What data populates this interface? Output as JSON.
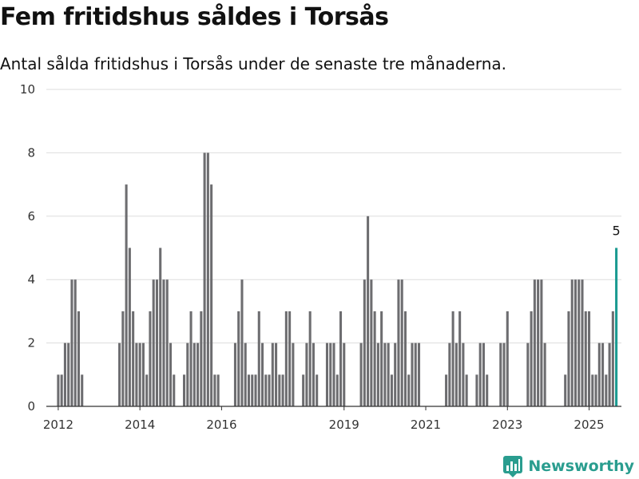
{
  "header": {
    "title": "Fem fritidshus såldes i Torsås",
    "subtitle": "Antal sålda fritidshus i Torsås under de senaste tre månaderna."
  },
  "brand": {
    "name": "Newsworthy",
    "icon": "newsworthy-logo-icon",
    "color": "#2a9d8f"
  },
  "colors": {
    "bar": "#6d6d70",
    "highlight": "#1a9a91",
    "grid": "#dddddd",
    "axis": "#333333"
  },
  "chart_data": {
    "type": "bar",
    "title": "Fem fritidshus såldes i Torsås",
    "subtitle": "Antal sålda fritidshus i Torsås under de senaste tre månaderna.",
    "xlabel": "",
    "ylabel": "",
    "ylim": [
      0,
      10
    ],
    "yticks": [
      "0",
      "2",
      "4",
      "6",
      "8",
      "10"
    ],
    "xlim": [
      "2011-10",
      "2025-11"
    ],
    "xticks": [
      {
        "label": "2012",
        "date": "2012-01"
      },
      {
        "label": "2014",
        "date": "2014-01"
      },
      {
        "label": "2016",
        "date": "2016-01"
      },
      {
        "label": "2019",
        "date": "2019-01"
      },
      {
        "label": "2021",
        "date": "2021-01"
      },
      {
        "label": "2023",
        "date": "2023-01"
      },
      {
        "label": "2025",
        "date": "2025-01"
      }
    ],
    "grid": true,
    "highlight": {
      "date": "2025-09",
      "value": 5,
      "label": "5"
    },
    "series": [
      {
        "values": [
          [
            "2012-01",
            1
          ],
          [
            "2012-02",
            1
          ],
          [
            "2012-03",
            2
          ],
          [
            "2012-04",
            2
          ],
          [
            "2012-05",
            4
          ],
          [
            "2012-06",
            4
          ],
          [
            "2012-07",
            3
          ],
          [
            "2012-08",
            1
          ],
          [
            "2013-07",
            2
          ],
          [
            "2013-08",
            3
          ],
          [
            "2013-09",
            7
          ],
          [
            "2013-10",
            5
          ],
          [
            "2013-11",
            3
          ],
          [
            "2013-12",
            2
          ],
          [
            "2014-01",
            2
          ],
          [
            "2014-02",
            2
          ],
          [
            "2014-03",
            1
          ],
          [
            "2014-04",
            3
          ],
          [
            "2014-05",
            4
          ],
          [
            "2014-06",
            4
          ],
          [
            "2014-07",
            5
          ],
          [
            "2014-08",
            4
          ],
          [
            "2014-09",
            4
          ],
          [
            "2014-10",
            2
          ],
          [
            "2014-11",
            1
          ],
          [
            "2015-02",
            1
          ],
          [
            "2015-03",
            2
          ],
          [
            "2015-04",
            3
          ],
          [
            "2015-05",
            2
          ],
          [
            "2015-06",
            2
          ],
          [
            "2015-07",
            3
          ],
          [
            "2015-08",
            8
          ],
          [
            "2015-09",
            8
          ],
          [
            "2015-10",
            7
          ],
          [
            "2015-11",
            1
          ],
          [
            "2015-12",
            1
          ],
          [
            "2016-05",
            2
          ],
          [
            "2016-06",
            3
          ],
          [
            "2016-07",
            4
          ],
          [
            "2016-08",
            2
          ],
          [
            "2016-09",
            1
          ],
          [
            "2016-10",
            1
          ],
          [
            "2016-11",
            1
          ],
          [
            "2016-12",
            3
          ],
          [
            "2017-01",
            2
          ],
          [
            "2017-02",
            1
          ],
          [
            "2017-03",
            1
          ],
          [
            "2017-04",
            2
          ],
          [
            "2017-05",
            2
          ],
          [
            "2017-06",
            1
          ],
          [
            "2017-07",
            1
          ],
          [
            "2017-08",
            3
          ],
          [
            "2017-09",
            3
          ],
          [
            "2017-10",
            2
          ],
          [
            "2018-01",
            1
          ],
          [
            "2018-02",
            2
          ],
          [
            "2018-03",
            3
          ],
          [
            "2018-04",
            2
          ],
          [
            "2018-05",
            1
          ],
          [
            "2018-08",
            2
          ],
          [
            "2018-09",
            2
          ],
          [
            "2018-10",
            2
          ],
          [
            "2018-11",
            1
          ],
          [
            "2018-12",
            3
          ],
          [
            "2019-01",
            2
          ],
          [
            "2019-06",
            2
          ],
          [
            "2019-07",
            4
          ],
          [
            "2019-08",
            6
          ],
          [
            "2019-09",
            4
          ],
          [
            "2019-10",
            3
          ],
          [
            "2019-11",
            2
          ],
          [
            "2019-12",
            3
          ],
          [
            "2020-01",
            2
          ],
          [
            "2020-02",
            2
          ],
          [
            "2020-03",
            1
          ],
          [
            "2020-04",
            2
          ],
          [
            "2020-05",
            4
          ],
          [
            "2020-06",
            4
          ],
          [
            "2020-07",
            3
          ],
          [
            "2020-08",
            1
          ],
          [
            "2020-09",
            2
          ],
          [
            "2020-10",
            2
          ],
          [
            "2020-11",
            2
          ],
          [
            "2021-07",
            1
          ],
          [
            "2021-08",
            2
          ],
          [
            "2021-09",
            3
          ],
          [
            "2021-10",
            2
          ],
          [
            "2021-11",
            3
          ],
          [
            "2021-12",
            2
          ],
          [
            "2022-01",
            1
          ],
          [
            "2022-04",
            1
          ],
          [
            "2022-05",
            2
          ],
          [
            "2022-06",
            2
          ],
          [
            "2022-07",
            1
          ],
          [
            "2022-11",
            2
          ],
          [
            "2022-12",
            2
          ],
          [
            "2023-01",
            3
          ],
          [
            "2023-07",
            2
          ],
          [
            "2023-08",
            3
          ],
          [
            "2023-09",
            4
          ],
          [
            "2023-10",
            4
          ],
          [
            "2023-11",
            4
          ],
          [
            "2023-12",
            2
          ],
          [
            "2024-06",
            1
          ],
          [
            "2024-07",
            3
          ],
          [
            "2024-08",
            4
          ],
          [
            "2024-09",
            4
          ],
          [
            "2024-10",
            4
          ],
          [
            "2024-11",
            4
          ],
          [
            "2024-12",
            3
          ],
          [
            "2025-01",
            3
          ],
          [
            "2025-02",
            1
          ],
          [
            "2025-03",
            1
          ],
          [
            "2025-04",
            2
          ],
          [
            "2025-05",
            2
          ],
          [
            "2025-06",
            1
          ],
          [
            "2025-07",
            2
          ],
          [
            "2025-08",
            3
          ],
          [
            "2025-09",
            5
          ]
        ]
      }
    ]
  }
}
